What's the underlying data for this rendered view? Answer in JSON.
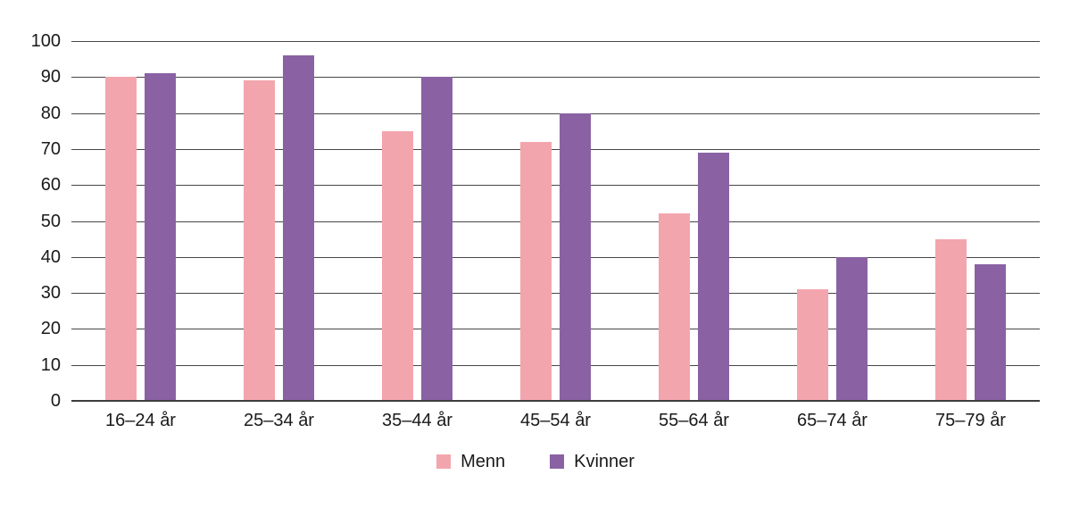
{
  "chart_data": {
    "type": "bar",
    "title": "",
    "xlabel": "",
    "ylabel": "",
    "categories": [
      "16–24 år",
      "25–34 år",
      "35–44 år",
      "45–54 år",
      "55–64 år",
      "65–74 år",
      "75–79 år"
    ],
    "series": [
      {
        "name": "Menn",
        "color": "#f3a5ae",
        "values": [
          90,
          89,
          75,
          72,
          52,
          31,
          45
        ]
      },
      {
        "name": "Kvinner",
        "color": "#8a62a3",
        "values": [
          91,
          96,
          90,
          80,
          69,
          40,
          38
        ]
      }
    ],
    "ylim": [
      0,
      100
    ],
    "y_ticks": [
      0,
      10,
      20,
      30,
      40,
      50,
      60,
      70,
      80,
      90,
      100
    ],
    "grid": true,
    "legend_position": "bottom"
  },
  "colors": {
    "grid": "#474747",
    "axis": "#3d3d3d",
    "text": "#1a1a1a",
    "background": "#ffffff"
  }
}
